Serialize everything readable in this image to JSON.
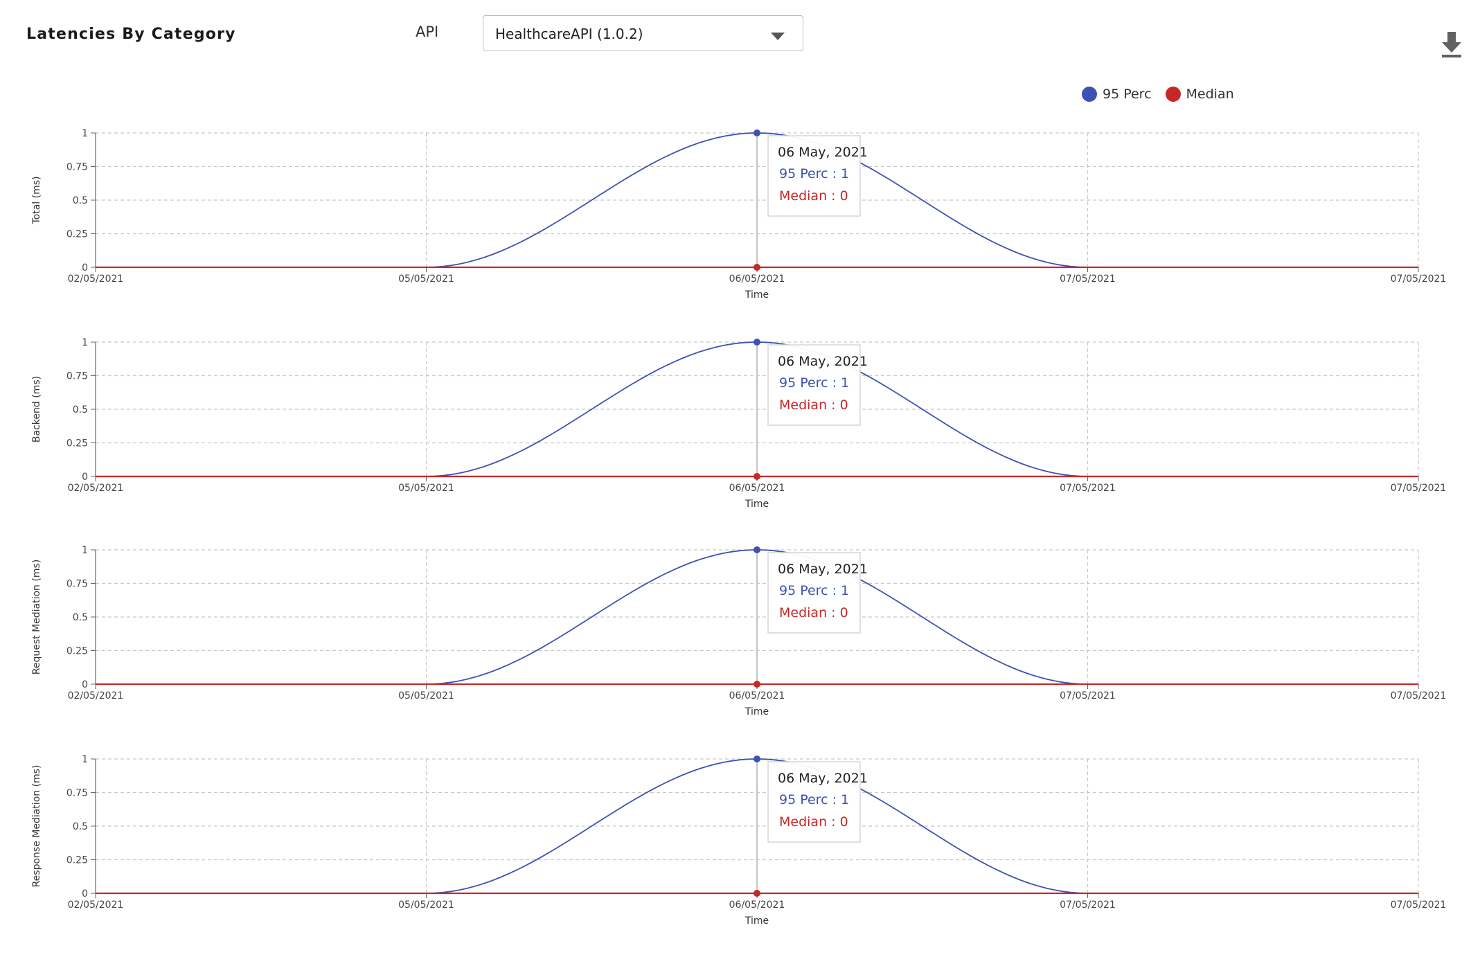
{
  "header": {
    "title": "Latencies By Category",
    "api_label": "API",
    "api_selected": "HealthcareAPI (1.0.2)"
  },
  "icons": {
    "download": "download-icon",
    "dropdown": "chevron-down-icon"
  },
  "colors": {
    "p95": "#3f51b5",
    "median": "#c62828",
    "grid": "#c8c8c8",
    "axis": "#666666"
  },
  "legend": [
    {
      "name": "95 Perc",
      "color": "#3f51b5"
    },
    {
      "name": "Median",
      "color": "#c62828"
    }
  ],
  "chart_data": [
    {
      "type": "line",
      "ylabel": "Total (ms)",
      "xlabel": "Time",
      "x": [
        "02/05/2021",
        "05/05/2021",
        "06/05/2021",
        "07/05/2021",
        "07/05/2021"
      ],
      "series": [
        {
          "name": "95 Perc",
          "values": [
            0,
            0,
            1,
            0,
            0
          ]
        },
        {
          "name": "Median",
          "values": [
            0,
            0,
            0,
            0,
            0
          ]
        }
      ],
      "ylim": [
        0,
        1
      ],
      "yticks": [
        "0",
        "0.25",
        "0.5",
        "0.75",
        "1"
      ],
      "grid": true,
      "tooltip": {
        "date": "06 May, 2021",
        "p95": "95 Perc : 1",
        "median": "Median : 0",
        "index": 2
      }
    },
    {
      "type": "line",
      "ylabel": "Backend (ms)",
      "xlabel": "Time",
      "x": [
        "02/05/2021",
        "05/05/2021",
        "06/05/2021",
        "07/05/2021",
        "07/05/2021"
      ],
      "series": [
        {
          "name": "95 Perc",
          "values": [
            0,
            0,
            1,
            0,
            0
          ]
        },
        {
          "name": "Median",
          "values": [
            0,
            0,
            0,
            0,
            0
          ]
        }
      ],
      "ylim": [
        0,
        1
      ],
      "yticks": [
        "0",
        "0.25",
        "0.5",
        "0.75",
        "1"
      ],
      "grid": true,
      "tooltip": {
        "date": "06 May, 2021",
        "p95": "95 Perc : 1",
        "median": "Median : 0",
        "index": 2
      }
    },
    {
      "type": "line",
      "ylabel": "Request Mediation (ms)",
      "xlabel": "Time",
      "x": [
        "02/05/2021",
        "05/05/2021",
        "06/05/2021",
        "07/05/2021",
        "07/05/2021"
      ],
      "series": [
        {
          "name": "95 Perc",
          "values": [
            0,
            0,
            1,
            0,
            0
          ]
        },
        {
          "name": "Median",
          "values": [
            0,
            0,
            0,
            0,
            0
          ]
        }
      ],
      "ylim": [
        0,
        1
      ],
      "yticks": [
        "0",
        "0.25",
        "0.5",
        "0.75",
        "1"
      ],
      "grid": true,
      "tooltip": {
        "date": "06 May, 2021",
        "p95": "95 Perc : 1",
        "median": "Median : 0",
        "index": 2
      }
    },
    {
      "type": "line",
      "ylabel": "Response Mediation (ms)",
      "xlabel": "Time",
      "x": [
        "02/05/2021",
        "05/05/2021",
        "06/05/2021",
        "07/05/2021",
        "07/05/2021"
      ],
      "series": [
        {
          "name": "95 Perc",
          "values": [
            0,
            0,
            1,
            0,
            0
          ]
        },
        {
          "name": "Median",
          "values": [
            0,
            0,
            0,
            0,
            0
          ]
        }
      ],
      "ylim": [
        0,
        1
      ],
      "yticks": [
        "0",
        "0.25",
        "0.5",
        "0.75",
        "1"
      ],
      "grid": true,
      "tooltip": {
        "date": "06 May, 2021",
        "p95": "95 Perc : 1",
        "median": "Median : 0",
        "index": 2
      }
    }
  ]
}
